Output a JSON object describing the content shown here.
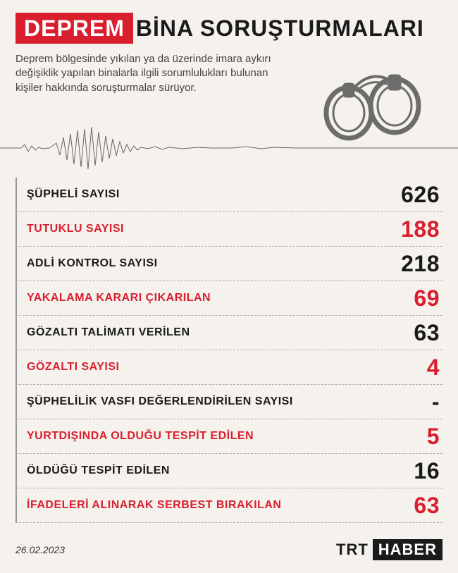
{
  "title": {
    "badge": "DEPREM",
    "rest": "BİNA SORUŞTURMALARI"
  },
  "subtitle": "Deprem bölgesinde yıkılan ya da üzerinde imara aykırı değişiklik yapılan binalarla ilgili sorumlulukları bulunan kişiler hakkında soruşturmalar sürüyor.",
  "colors": {
    "red": "#d91e2e",
    "black": "#1a1a1a",
    "bg": "#f5f2ee",
    "grey": "#999999"
  },
  "rows": [
    {
      "label": "ŞÜPHELİ SAYISI",
      "value": "626",
      "label_color": "#1a1a1a",
      "value_color": "#1a1a1a"
    },
    {
      "label": "TUTUKLU SAYISI",
      "value": "188",
      "label_color": "#d91e2e",
      "value_color": "#d91e2e"
    },
    {
      "label": "ADLİ KONTROL SAYISI",
      "value": "218",
      "label_color": "#1a1a1a",
      "value_color": "#1a1a1a"
    },
    {
      "label": "YAKALAMA KARARI ÇIKARILAN",
      "value": "69",
      "label_color": "#d91e2e",
      "value_color": "#d91e2e"
    },
    {
      "label": "GÖZALTI TALİMATI VERİLEN",
      "value": "63",
      "label_color": "#1a1a1a",
      "value_color": "#1a1a1a"
    },
    {
      "label": "GÖZALTI SAYISI",
      "value": "4",
      "label_color": "#d91e2e",
      "value_color": "#d91e2e"
    },
    {
      "label": "ŞÜPHELİLİK VASFI DEĞERLENDİRİLEN SAYISI",
      "value": "-",
      "label_color": "#1a1a1a",
      "value_color": "#1a1a1a"
    },
    {
      "label": "YURTDIŞINDA OLDUĞU TESPİT EDİLEN",
      "value": "5",
      "label_color": "#d91e2e",
      "value_color": "#d91e2e"
    },
    {
      "label": "ÖLDÜĞÜ TESPİT EDİLEN",
      "value": "16",
      "label_color": "#1a1a1a",
      "value_color": "#1a1a1a"
    },
    {
      "label": "İFADELERİ ALINARAK SERBEST BIRAKILAN",
      "value": "63",
      "label_color": "#d91e2e",
      "value_color": "#d91e2e"
    }
  ],
  "date": "26.02.2023",
  "logo": {
    "trt": "TRT",
    "haber": "HABER"
  },
  "wave_color": "#666666",
  "handcuff_stroke": "#555555"
}
